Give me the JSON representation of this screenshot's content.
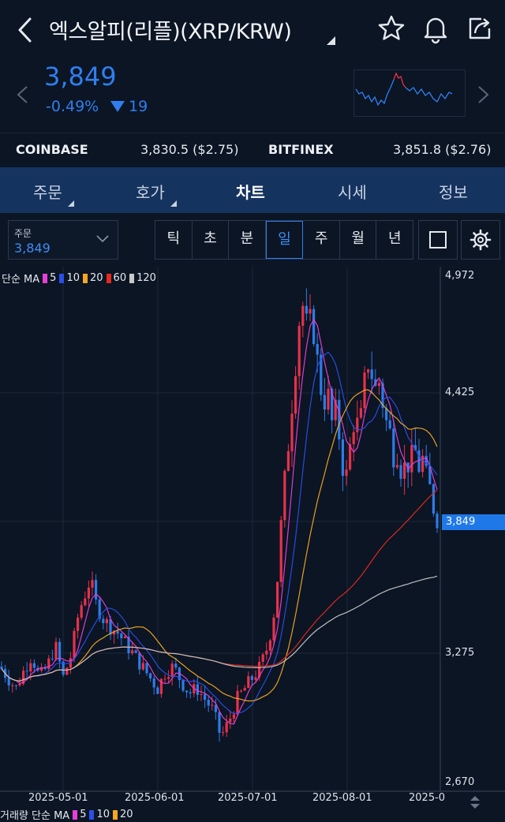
{
  "header": {
    "title": "엑스알피(리플)(XRP/KRW)",
    "icons": [
      "back-arrow-icon",
      "star-icon",
      "bell-icon",
      "share-icon"
    ]
  },
  "price": {
    "current": "3,849",
    "change_pct": "-0.49%",
    "change_abs": "19",
    "color": "#2f7ff0"
  },
  "exchanges": [
    {
      "name": "COINBASE",
      "value": "3,830.5 ($2.75)"
    },
    {
      "name": "BITFINEX",
      "value": "3,851.8 ($2.76)"
    }
  ],
  "tabs": [
    {
      "label": "주문",
      "has_caret": true
    },
    {
      "label": "호가",
      "has_caret": true
    },
    {
      "label": "차트",
      "active": true
    },
    {
      "label": "시세"
    },
    {
      "label": "정보"
    }
  ],
  "toolbar": {
    "order_label": "주문",
    "order_value": "3,849",
    "periods": [
      "틱",
      "초",
      "분",
      "일",
      "주",
      "월",
      "년"
    ],
    "selected_period": "일"
  },
  "chart_data": {
    "type": "candlestick",
    "legend_prefix": "단순 MA",
    "ma": [
      {
        "name": "5",
        "color": "#e83fd8"
      },
      {
        "name": "10",
        "color": "#2b4ee8"
      },
      {
        "name": "20",
        "color": "#f5a623"
      },
      {
        "name": "60",
        "color": "#e8291c"
      },
      {
        "name": "120",
        "color": "#c8c8c8"
      }
    ],
    "y_ticks": [
      "4,972",
      "4,425",
      "3,849",
      "3,275",
      "2,670"
    ],
    "ylim": [
      2670,
      4972
    ],
    "x_ticks": [
      "2025-05-01",
      "2025-06-01",
      "2025-07-01",
      "2025-08-01",
      "2025-0"
    ],
    "current_price_label": "3,849",
    "volume_legend": {
      "prefix": "거래량 단순 MA",
      "items": [
        "5",
        "10",
        "20"
      ]
    },
    "colors": {
      "up": "#e8314a",
      "down": "#2c7ce8",
      "grid": "#1c2838"
    }
  }
}
